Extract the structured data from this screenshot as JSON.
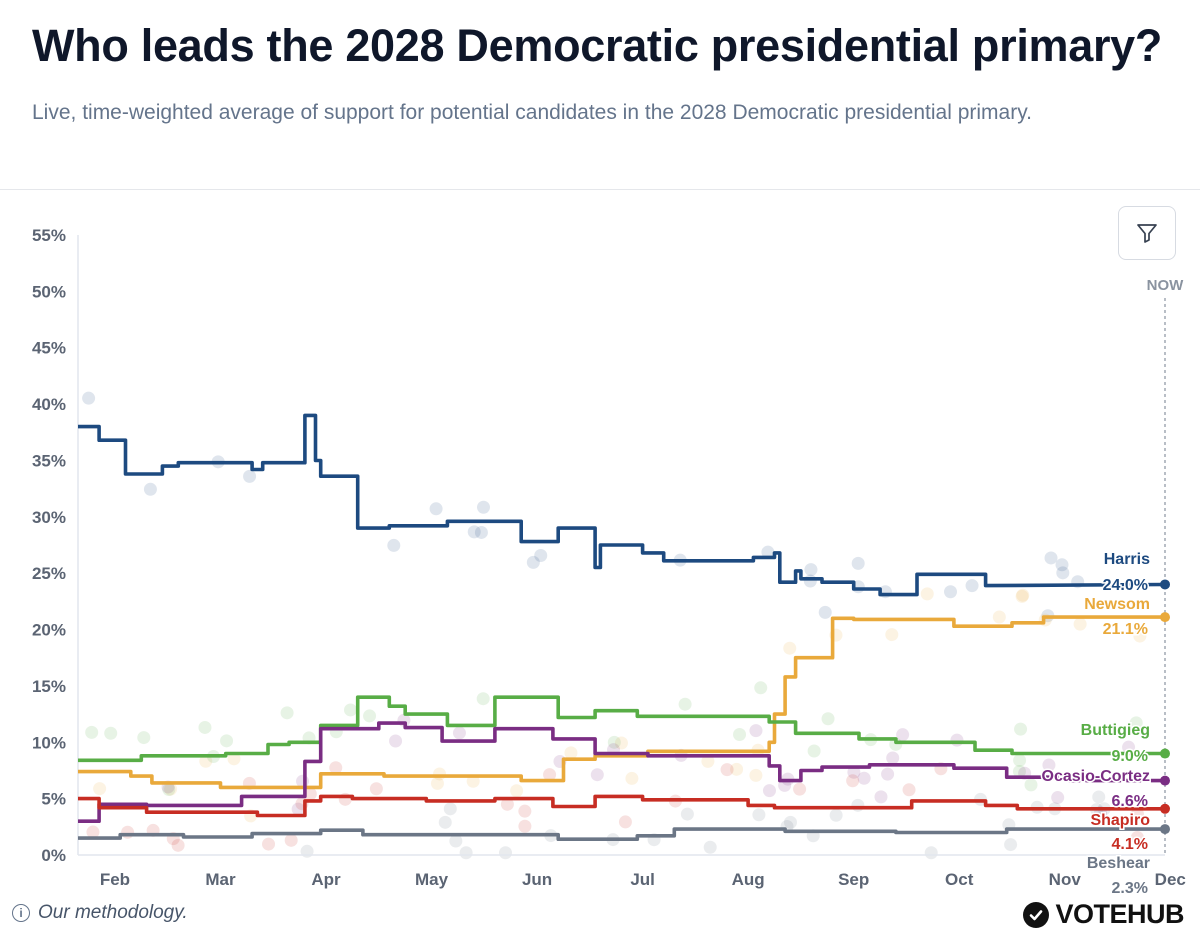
{
  "header": {
    "title": "Who leads the 2028 Democratic presidential primary?",
    "subtitle": "Live, time-weighted average of support for potential candidates in the 2028 Democratic presidential primary."
  },
  "controls": {
    "filter_icon": "filter-funnel-icon"
  },
  "footer": {
    "methodology_label": "Our methodology.",
    "info_icon": "info-icon",
    "logo_text": "VOTEHUB",
    "logo_icon": "check-circle-icon"
  },
  "chart_data": {
    "type": "line",
    "title": "Who leads the 2028 Democratic presidential primary?",
    "xlabel": "",
    "ylabel": "",
    "ylim": [
      0,
      55
    ],
    "xlim": [
      0,
      10.3
    ],
    "yticks": [
      0,
      5,
      10,
      15,
      20,
      25,
      30,
      35,
      40,
      45,
      50,
      55
    ],
    "ytick_labels": [
      "0%",
      "5%",
      "10%",
      "15%",
      "20%",
      "25%",
      "30%",
      "35%",
      "40%",
      "45%",
      "50%",
      "55%"
    ],
    "xticks": [
      0.35,
      1.35,
      2.35,
      3.35,
      4.35,
      5.35,
      6.35,
      7.35,
      8.35,
      9.35,
      10.35
    ],
    "xtick_labels": [
      "Feb",
      "Mar",
      "Apr",
      "May",
      "Jun",
      "Jul",
      "Aug",
      "Sep",
      "Oct",
      "Nov",
      "Dec"
    ],
    "now_label": "NOW",
    "now_x": 10.3,
    "grid": false,
    "series": [
      {
        "name": "Harris",
        "color": "#1d4a80",
        "final_label": "24.0%",
        "points": [
          [
            0.0,
            38.0
          ],
          [
            0.2,
            38.0
          ],
          [
            0.2,
            36.8
          ],
          [
            0.45,
            36.8
          ],
          [
            0.45,
            33.8
          ],
          [
            0.8,
            33.8
          ],
          [
            0.8,
            34.5
          ],
          [
            0.95,
            34.5
          ],
          [
            0.95,
            34.8
          ],
          [
            1.65,
            34.8
          ],
          [
            1.65,
            34.2
          ],
          [
            1.75,
            34.2
          ],
          [
            1.75,
            34.8
          ],
          [
            2.15,
            34.8
          ],
          [
            2.15,
            39.0
          ],
          [
            2.25,
            39.0
          ],
          [
            2.25,
            35.0
          ],
          [
            2.3,
            35.0
          ],
          [
            2.3,
            33.6
          ],
          [
            2.65,
            33.6
          ],
          [
            2.65,
            29.0
          ],
          [
            2.95,
            29.0
          ],
          [
            2.95,
            29.2
          ],
          [
            3.5,
            29.2
          ],
          [
            3.5,
            29.6
          ],
          [
            4.2,
            29.6
          ],
          [
            4.2,
            27.8
          ],
          [
            4.55,
            27.8
          ],
          [
            4.55,
            29.0
          ],
          [
            4.9,
            29.0
          ],
          [
            4.9,
            25.5
          ],
          [
            4.95,
            25.5
          ],
          [
            4.95,
            27.5
          ],
          [
            5.35,
            27.5
          ],
          [
            5.35,
            26.8
          ],
          [
            5.55,
            26.8
          ],
          [
            5.55,
            26.1
          ],
          [
            6.4,
            26.1
          ],
          [
            6.4,
            26.4
          ],
          [
            6.6,
            26.4
          ],
          [
            6.6,
            26.8
          ],
          [
            6.65,
            26.8
          ],
          [
            6.65,
            24.2
          ],
          [
            6.8,
            24.2
          ],
          [
            6.8,
            25.2
          ],
          [
            6.85,
            25.2
          ],
          [
            6.85,
            24.5
          ],
          [
            7.05,
            24.5
          ],
          [
            7.05,
            24.2
          ],
          [
            7.35,
            24.2
          ],
          [
            7.35,
            23.6
          ],
          [
            7.6,
            23.6
          ],
          [
            7.6,
            23.1
          ],
          [
            7.95,
            23.1
          ],
          [
            7.95,
            24.9
          ],
          [
            8.6,
            24.9
          ],
          [
            8.6,
            23.9
          ],
          [
            10.3,
            24.0
          ]
        ]
      },
      {
        "name": "Newsom",
        "color": "#e9a93b",
        "final_label": "21.1%",
        "points": [
          [
            0.0,
            7.4
          ],
          [
            0.5,
            7.4
          ],
          [
            0.5,
            7.0
          ],
          [
            0.7,
            7.0
          ],
          [
            0.7,
            6.4
          ],
          [
            1.35,
            6.4
          ],
          [
            1.35,
            6.0
          ],
          [
            2.3,
            6.0
          ],
          [
            2.3,
            7.2
          ],
          [
            2.9,
            7.2
          ],
          [
            2.9,
            7.0
          ],
          [
            4.2,
            7.0
          ],
          [
            4.2,
            6.6
          ],
          [
            4.6,
            6.6
          ],
          [
            4.6,
            8.5
          ],
          [
            4.9,
            8.5
          ],
          [
            4.9,
            8.8
          ],
          [
            5.4,
            8.8
          ],
          [
            5.4,
            9.2
          ],
          [
            6.55,
            9.2
          ],
          [
            6.55,
            10.0
          ],
          [
            6.6,
            10.0
          ],
          [
            6.6,
            12.5
          ],
          [
            6.7,
            12.5
          ],
          [
            6.7,
            15.8
          ],
          [
            6.8,
            15.8
          ],
          [
            6.8,
            17.5
          ],
          [
            7.15,
            17.5
          ],
          [
            7.15,
            21.0
          ],
          [
            7.35,
            21.0
          ],
          [
            7.35,
            20.9
          ],
          [
            8.3,
            20.9
          ],
          [
            8.3,
            20.3
          ],
          [
            8.85,
            20.3
          ],
          [
            8.85,
            20.6
          ],
          [
            9.15,
            20.6
          ],
          [
            9.15,
            21.1
          ],
          [
            10.3,
            21.1
          ]
        ]
      },
      {
        "name": "Buttigieg",
        "color": "#58ad46",
        "final_label": "9.0%",
        "points": [
          [
            0.0,
            8.4
          ],
          [
            0.6,
            8.4
          ],
          [
            0.6,
            8.8
          ],
          [
            1.4,
            8.8
          ],
          [
            1.4,
            9.0
          ],
          [
            1.8,
            9.0
          ],
          [
            1.8,
            9.8
          ],
          [
            2.0,
            9.8
          ],
          [
            2.0,
            10.0
          ],
          [
            2.3,
            10.0
          ],
          [
            2.3,
            11.5
          ],
          [
            2.65,
            11.5
          ],
          [
            2.65,
            14.0
          ],
          [
            2.95,
            14.0
          ],
          [
            2.95,
            13.2
          ],
          [
            3.1,
            13.2
          ],
          [
            3.1,
            12.5
          ],
          [
            3.5,
            12.5
          ],
          [
            3.5,
            11.5
          ],
          [
            3.95,
            11.5
          ],
          [
            3.95,
            14.0
          ],
          [
            4.55,
            14.0
          ],
          [
            4.55,
            12.2
          ],
          [
            4.9,
            12.2
          ],
          [
            4.9,
            12.8
          ],
          [
            5.3,
            12.8
          ],
          [
            5.3,
            12.3
          ],
          [
            6.55,
            12.3
          ],
          [
            6.55,
            11.8
          ],
          [
            6.8,
            11.8
          ],
          [
            6.8,
            10.8
          ],
          [
            7.4,
            10.8
          ],
          [
            7.4,
            10.3
          ],
          [
            7.75,
            10.3
          ],
          [
            7.75,
            10.0
          ],
          [
            8.5,
            10.0
          ],
          [
            8.5,
            9.3
          ],
          [
            8.85,
            9.3
          ],
          [
            8.85,
            9.0
          ],
          [
            10.3,
            9.0
          ]
        ]
      },
      {
        "name": "Ocasio-Cortez",
        "color": "#7a2d83",
        "final_label": "6.6%",
        "points": [
          [
            0.0,
            3.0
          ],
          [
            0.2,
            3.0
          ],
          [
            0.2,
            4.5
          ],
          [
            0.65,
            4.5
          ],
          [
            0.65,
            4.4
          ],
          [
            1.55,
            4.4
          ],
          [
            1.55,
            5.2
          ],
          [
            2.15,
            5.2
          ],
          [
            2.15,
            8.3
          ],
          [
            2.3,
            8.3
          ],
          [
            2.3,
            11.2
          ],
          [
            2.85,
            11.2
          ],
          [
            2.85,
            11.7
          ],
          [
            3.1,
            11.7
          ],
          [
            3.1,
            11.3
          ],
          [
            3.45,
            11.3
          ],
          [
            3.45,
            10.1
          ],
          [
            3.95,
            10.1
          ],
          [
            3.95,
            11.2
          ],
          [
            4.5,
            11.2
          ],
          [
            4.5,
            10.3
          ],
          [
            4.9,
            10.3
          ],
          [
            4.9,
            9.0
          ],
          [
            5.4,
            9.0
          ],
          [
            5.4,
            8.8
          ],
          [
            6.55,
            8.8
          ],
          [
            6.55,
            7.9
          ],
          [
            6.65,
            7.9
          ],
          [
            6.65,
            6.6
          ],
          [
            6.85,
            6.6
          ],
          [
            6.85,
            7.5
          ],
          [
            7.05,
            7.5
          ],
          [
            7.05,
            7.8
          ],
          [
            7.5,
            7.8
          ],
          [
            7.5,
            8.0
          ],
          [
            8.3,
            8.0
          ],
          [
            8.3,
            7.7
          ],
          [
            8.8,
            7.7
          ],
          [
            8.8,
            6.9
          ],
          [
            9.4,
            6.9
          ],
          [
            9.4,
            6.6
          ],
          [
            10.3,
            6.6
          ]
        ]
      },
      {
        "name": "Shapiro",
        "color": "#c72d23",
        "final_label": "4.1%",
        "points": [
          [
            0.0,
            5.0
          ],
          [
            0.2,
            5.0
          ],
          [
            0.2,
            4.2
          ],
          [
            0.65,
            4.2
          ],
          [
            0.65,
            3.8
          ],
          [
            1.7,
            3.8
          ],
          [
            1.7,
            3.5
          ],
          [
            2.15,
            3.5
          ],
          [
            2.15,
            4.8
          ],
          [
            2.3,
            4.8
          ],
          [
            2.3,
            5.2
          ],
          [
            2.6,
            5.2
          ],
          [
            2.6,
            5.0
          ],
          [
            3.3,
            5.0
          ],
          [
            3.3,
            4.8
          ],
          [
            3.95,
            4.8
          ],
          [
            3.95,
            5.0
          ],
          [
            4.5,
            5.0
          ],
          [
            4.5,
            4.3
          ],
          [
            4.9,
            4.3
          ],
          [
            4.9,
            5.2
          ],
          [
            5.35,
            5.2
          ],
          [
            5.35,
            4.9
          ],
          [
            6.35,
            4.9
          ],
          [
            6.35,
            4.4
          ],
          [
            6.6,
            4.4
          ],
          [
            6.6,
            4.2
          ],
          [
            7.9,
            4.2
          ],
          [
            7.9,
            4.8
          ],
          [
            8.6,
            4.8
          ],
          [
            8.6,
            4.4
          ],
          [
            8.9,
            4.4
          ],
          [
            8.9,
            4.1
          ],
          [
            10.3,
            4.1
          ]
        ]
      },
      {
        "name": "Beshear",
        "color": "#6b7686",
        "final_label": "2.3%",
        "points": [
          [
            0.0,
            1.5
          ],
          [
            0.4,
            1.5
          ],
          [
            0.4,
            1.8
          ],
          [
            1.0,
            1.8
          ],
          [
            1.0,
            1.6
          ],
          [
            1.65,
            1.6
          ],
          [
            1.65,
            1.9
          ],
          [
            2.3,
            1.9
          ],
          [
            2.3,
            2.2
          ],
          [
            2.7,
            2.2
          ],
          [
            2.7,
            1.8
          ],
          [
            4.55,
            1.8
          ],
          [
            4.55,
            1.4
          ],
          [
            5.3,
            1.4
          ],
          [
            5.3,
            1.7
          ],
          [
            5.65,
            1.7
          ],
          [
            5.65,
            2.3
          ],
          [
            6.7,
            2.3
          ],
          [
            6.7,
            2.1
          ],
          [
            7.75,
            2.1
          ],
          [
            7.75,
            2.0
          ],
          [
            8.8,
            2.0
          ],
          [
            8.8,
            2.3
          ],
          [
            10.3,
            2.3
          ]
        ]
      }
    ]
  }
}
